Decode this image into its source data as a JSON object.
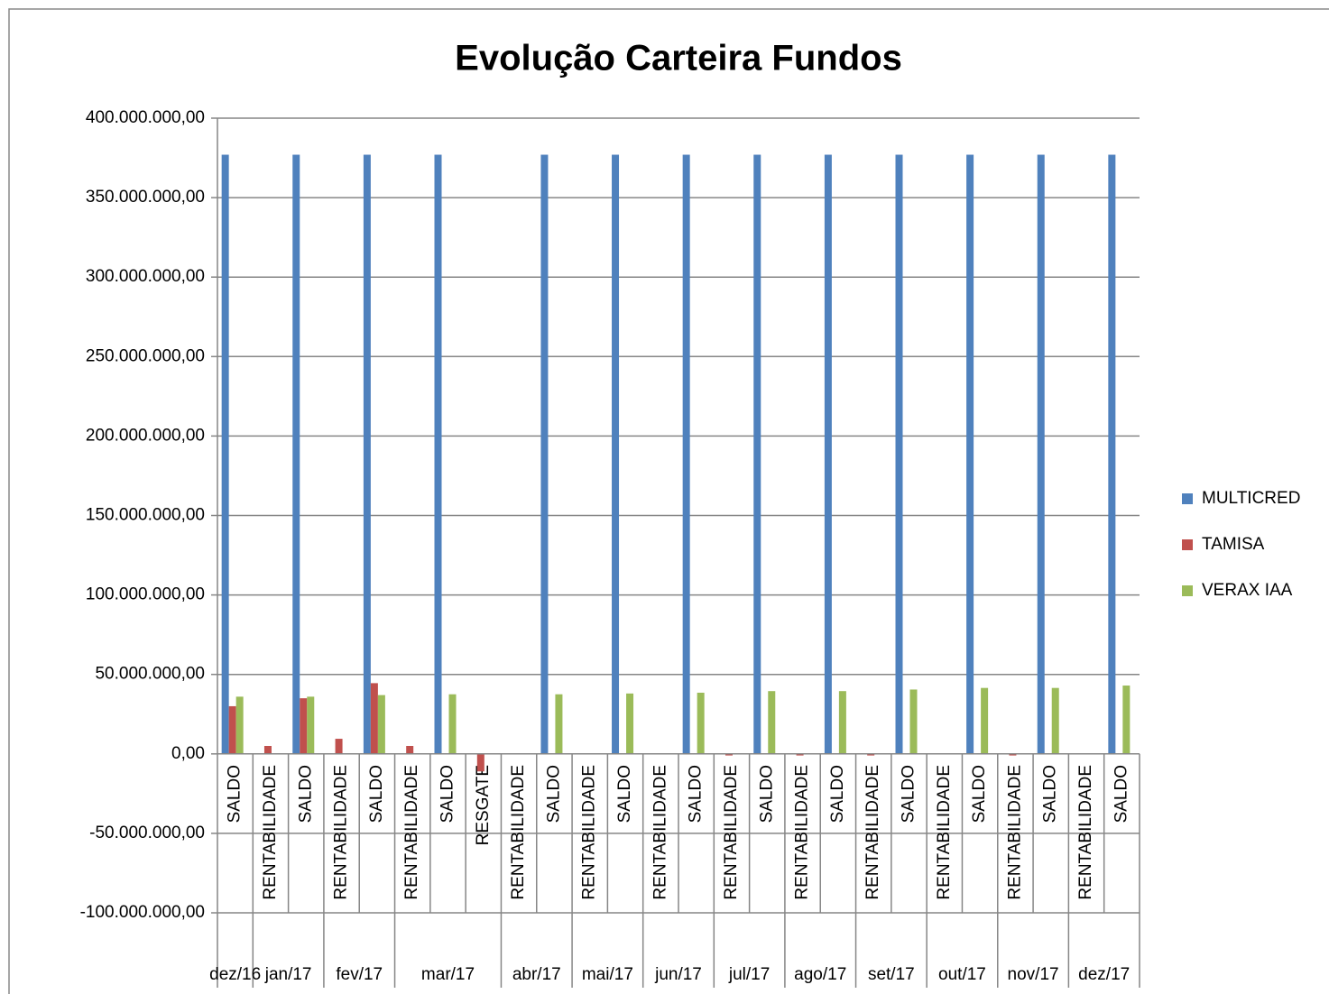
{
  "chart_data": {
    "type": "bar",
    "title": "Evolução Carteira Fundos",
    "groups": [
      {
        "name": "dez/16",
        "categories": [
          "SALDO"
        ]
      },
      {
        "name": "jan/17",
        "categories": [
          "RENTABILIDADE",
          "SALDO"
        ]
      },
      {
        "name": "fev/17",
        "categories": [
          "RENTABILIDADE",
          "SALDO"
        ]
      },
      {
        "name": "mar/17",
        "categories": [
          "RENTABILIDADE",
          "SALDO",
          "RESGATE"
        ]
      },
      {
        "name": "abr/17",
        "categories": [
          "RENTABILIDADE",
          "SALDO"
        ]
      },
      {
        "name": "mai/17",
        "categories": [
          "RENTABILIDADE",
          "SALDO"
        ]
      },
      {
        "name": "jun/17",
        "categories": [
          "RENTABILIDADE",
          "SALDO"
        ]
      },
      {
        "name": "jul/17",
        "categories": [
          "RENTABILIDADE",
          "SALDO"
        ]
      },
      {
        "name": "ago/17",
        "categories": [
          "RENTABILIDADE",
          "SALDO"
        ]
      },
      {
        "name": "set/17",
        "categories": [
          "RENTABILIDADE",
          "SALDO"
        ]
      },
      {
        "name": "out/17",
        "categories": [
          "RENTABILIDADE",
          "SALDO"
        ]
      },
      {
        "name": "nov/17",
        "categories": [
          "RENTABILIDADE",
          "SALDO"
        ]
      },
      {
        "name": "dez/17",
        "categories": [
          "RENTABILIDADE",
          "SALDO"
        ]
      }
    ],
    "series": [
      {
        "name": "MULTICRED",
        "color": "#4f81bd",
        "values": [
          377000000,
          null,
          377000000,
          null,
          377000000,
          null,
          377000000,
          null,
          null,
          377000000,
          null,
          377000000,
          null,
          377000000,
          null,
          377000000,
          null,
          377000000,
          null,
          377000000,
          null,
          377000000,
          null,
          377000000,
          null,
          377000000
        ]
      },
      {
        "name": "TAMISA",
        "color": "#c0504d",
        "values": [
          30000000,
          5000000,
          35000000,
          9500000,
          44500000,
          5000000,
          null,
          -11000000,
          null,
          null,
          null,
          null,
          null,
          null,
          -1000000,
          null,
          -1000000,
          null,
          -1000000,
          null,
          null,
          null,
          -1000000,
          null,
          null,
          null
        ]
      },
      {
        "name": "VERAX IAA",
        "color": "#9bbb59",
        "values": [
          36000000,
          null,
          36000000,
          null,
          37000000,
          null,
          37500000,
          null,
          null,
          37500000,
          null,
          38000000,
          null,
          38500000,
          null,
          39500000,
          null,
          39500000,
          null,
          40500000,
          null,
          41500000,
          null,
          41500000,
          null,
          43000000
        ]
      }
    ],
    "ylim": [
      -100000000,
      400000000
    ],
    "yticks": [
      {
        "value": -100000000,
        "label": "-100.000.000,00"
      },
      {
        "value": -50000000,
        "label": "-50.000.000,00"
      },
      {
        "value": 0,
        "label": "0,00"
      },
      {
        "value": 50000000,
        "label": "50.000.000,00"
      },
      {
        "value": 100000000,
        "label": "100.000.000,00"
      },
      {
        "value": 150000000,
        "label": "150.000.000,00"
      },
      {
        "value": 200000000,
        "label": "200.000.000,00"
      },
      {
        "value": 250000000,
        "label": "250.000.000,00"
      },
      {
        "value": 300000000,
        "label": "300.000.000,00"
      },
      {
        "value": 350000000,
        "label": "350.000.000,00"
      },
      {
        "value": 400000000,
        "label": "400.000.000,00"
      }
    ],
    "grid": true,
    "legend": "right"
  }
}
